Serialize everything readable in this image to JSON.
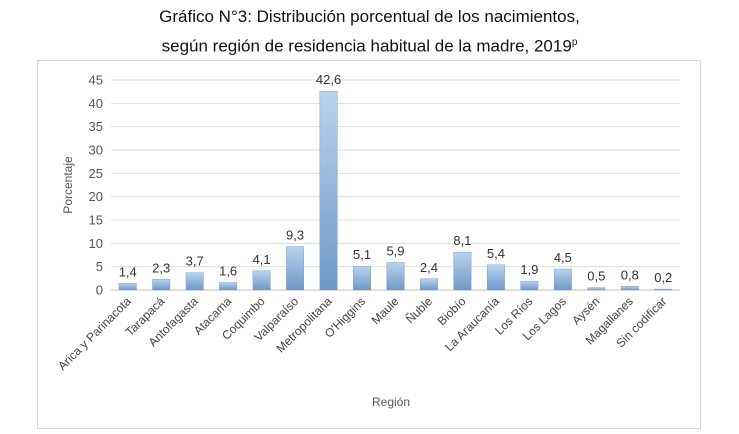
{
  "chart_data": {
    "type": "bar",
    "title_line1": "Gráfico N°3: Distribución porcentual de los nacimientos,",
    "title_line2": "según región de residencia habitual de la madre, 2019",
    "title_superscript": "p",
    "xlabel": "Región",
    "ylabel": "Porcentaje",
    "ylim": [
      0,
      45
    ],
    "yticks": [
      0,
      5,
      10,
      15,
      20,
      25,
      30,
      35,
      40,
      45
    ],
    "grid": true,
    "categories": [
      "Arica y Parinacota",
      "Tarapacá",
      "Antofagasta",
      "Atacama",
      "Coquimbo",
      "Valparaíso",
      "Metropolitana",
      "O'Higgins",
      "Maule",
      "Ñuble",
      "Biobío",
      "La Araucanía",
      "Los Ríos",
      "Los Lagos",
      "Aysén",
      "Magallanes",
      "Sin codificar"
    ],
    "values": [
      1.4,
      2.3,
      3.7,
      1.6,
      4.1,
      9.3,
      42.6,
      5.1,
      5.9,
      2.4,
      8.1,
      5.4,
      1.9,
      4.5,
      0.5,
      0.8,
      0.2
    ],
    "value_labels": [
      "1,4",
      "2,3",
      "3,7",
      "1,6",
      "4,1",
      "9,3",
      "42,6",
      "5,1",
      "5,9",
      "2,4",
      "8,1",
      "5,4",
      "1,9",
      "4,5",
      "0,5",
      "0,8",
      "0,2"
    ],
    "bar_color": "#8fb3d9"
  }
}
